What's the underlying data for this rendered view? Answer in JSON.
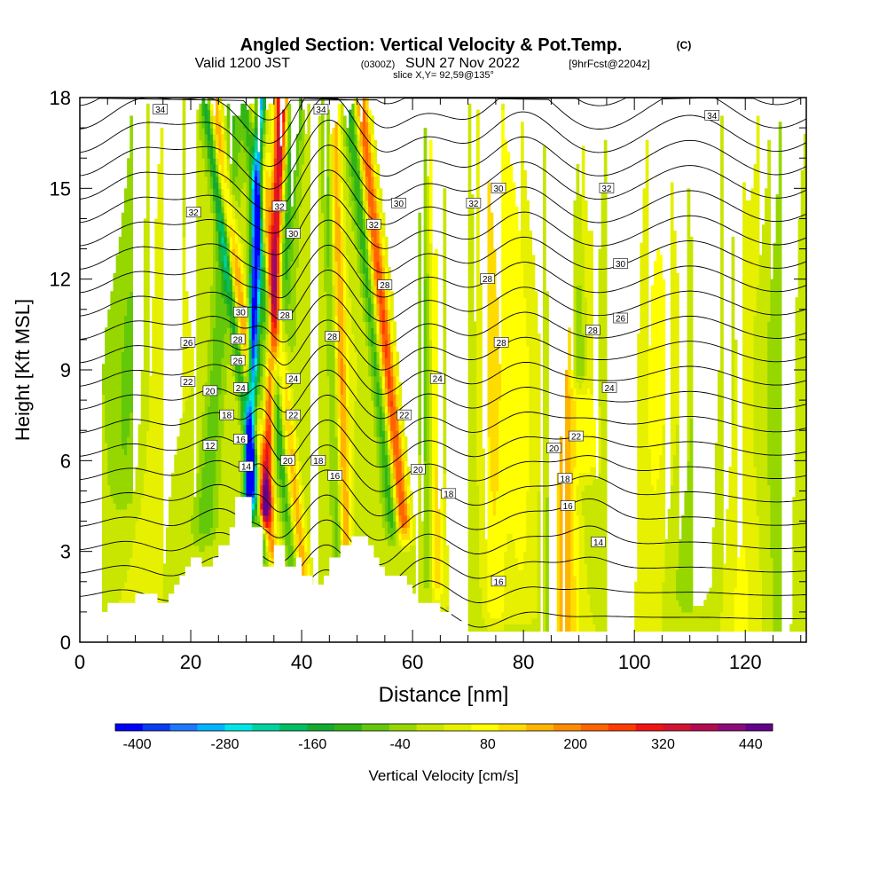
{
  "header": {
    "title_main": "Angled Section: Vertical Velocity & Pot.Temp.",
    "title_units": "(C)",
    "valid_prefix": "Valid 1200 JST",
    "valid_zulu": "(0300Z)",
    "valid_date": "SUN 27 Nov 2022",
    "forecast": "[9hrFcst@2204z]",
    "slice": "slice X,Y= 92,59@135°"
  },
  "chart_data": {
    "type": "heatmap",
    "xlabel": "Distance [nm]",
    "ylabel": "Height [Kft MSL]",
    "xlim": [
      0,
      131
    ],
    "ylim": [
      0,
      18
    ],
    "x_ticks": [
      "0",
      "20",
      "40",
      "60",
      "80",
      "100",
      "120"
    ],
    "x_tick_values": [
      0,
      20,
      40,
      60,
      80,
      100,
      120
    ],
    "y_ticks": [
      "0",
      "3",
      "6",
      "9",
      "12",
      "15",
      "18"
    ],
    "y_tick_values": [
      0,
      3,
      6,
      9,
      12,
      15,
      18
    ],
    "colorbar": {
      "label": "Vertical Velocity [cm/s]",
      "tick_labels": [
        "-400",
        "-280",
        "-160",
        "-40",
        "80",
        "200",
        "320",
        "440"
      ],
      "tick_values": [
        -400,
        -280,
        -160,
        -40,
        80,
        200,
        320,
        440
      ],
      "range": [
        -430,
        470
      ],
      "colors": [
        "#0000ff",
        "#0a3cf0",
        "#1e78ff",
        "#00b4ff",
        "#00e6e6",
        "#00d2a0",
        "#00be64",
        "#14aa32",
        "#32b414",
        "#64c80a",
        "#96d700",
        "#c8e600",
        "#e6f000",
        "#ffff00",
        "#ffdc00",
        "#ffb400",
        "#ff8c00",
        "#ff6400",
        "#ff3c00",
        "#f01414",
        "#d21432",
        "#b40a50",
        "#8c0a78",
        "#64008c"
      ]
    },
    "terrain_profile": [
      [
        0,
        1.0
      ],
      [
        5,
        1.0
      ],
      [
        5,
        1.3
      ],
      [
        10,
        1.3
      ],
      [
        10,
        1.6
      ],
      [
        14,
        1.6
      ],
      [
        14,
        1.3
      ],
      [
        16,
        1.3
      ],
      [
        16,
        1.6
      ],
      [
        17,
        1.6
      ],
      [
        17,
        1.9
      ],
      [
        18,
        1.9
      ],
      [
        18,
        2.2
      ],
      [
        19,
        2.2
      ],
      [
        19,
        2.5
      ],
      [
        20,
        2.5
      ],
      [
        20,
        2.8
      ],
      [
        22,
        2.8
      ],
      [
        22,
        2.5
      ],
      [
        24,
        2.5
      ],
      [
        24,
        2.8
      ],
      [
        25,
        2.8
      ],
      [
        25,
        3.2
      ],
      [
        27,
        3.2
      ],
      [
        27,
        3.8
      ],
      [
        28,
        3.8
      ],
      [
        28,
        4.8
      ],
      [
        31,
        4.8
      ],
      [
        31,
        3.8
      ],
      [
        33,
        3.8
      ],
      [
        33,
        2.5
      ],
      [
        35,
        2.5
      ],
      [
        35,
        3.2
      ],
      [
        37,
        3.2
      ],
      [
        37,
        2.5
      ],
      [
        39,
        2.5
      ],
      [
        39,
        2.8
      ],
      [
        40,
        2.8
      ],
      [
        40,
        2.2
      ],
      [
        42,
        2.2
      ],
      [
        42,
        1.9
      ],
      [
        44,
        1.9
      ],
      [
        44,
        2.2
      ],
      [
        45,
        2.2
      ],
      [
        45,
        2.8
      ],
      [
        47,
        2.8
      ],
      [
        47,
        3.2
      ],
      [
        49,
        3.2
      ],
      [
        49,
        3.5
      ],
      [
        52,
        3.5
      ],
      [
        52,
        3.2
      ],
      [
        53,
        3.2
      ],
      [
        53,
        2.8
      ],
      [
        54,
        2.8
      ],
      [
        54,
        2.5
      ],
      [
        55,
        2.5
      ],
      [
        55,
        2.2
      ],
      [
        59,
        2.2
      ],
      [
        59,
        1.9
      ],
      [
        60,
        1.9
      ],
      [
        60,
        1.6
      ],
      [
        61,
        1.6
      ],
      [
        61,
        1.3
      ],
      [
        65,
        1.3
      ],
      [
        65,
        1.0
      ],
      [
        67,
        1.0
      ],
      [
        67,
        0.7
      ],
      [
        70,
        0.7
      ],
      [
        70,
        0.35
      ],
      [
        131,
        0.35
      ]
    ],
    "velocity_bands": [
      {
        "x_base": 32.5,
        "slope": 0.22,
        "width": 1.1,
        "amp": 420,
        "z_start": 4.5
      },
      {
        "x_base": 29.8,
        "slope": 0.15,
        "width": 0.9,
        "amp": -420,
        "z_start": 4.5
      },
      {
        "x_base": 30.5,
        "slope": 0.45,
        "width": 2.0,
        "amp": -150,
        "z_start": 5.5
      },
      {
        "x_base": 36.8,
        "slope": -0.7,
        "width": 1.2,
        "amp": 180,
        "z_start": 3
      },
      {
        "x_base": 35.2,
        "slope": -0.7,
        "width": 0.9,
        "amp": -150,
        "z_start": 3
      },
      {
        "x_base": 41.5,
        "slope": -0.55,
        "width": 1.2,
        "amp": 150,
        "z_start": 2
      },
      {
        "x_base": 39.7,
        "slope": -0.55,
        "width": 1.0,
        "amp": -110,
        "z_start": 2
      },
      {
        "x_base": 60.5,
        "slope": -0.55,
        "width": 1.3,
        "amp": 250,
        "z_start": 4
      },
      {
        "x_base": 58.5,
        "slope": -0.55,
        "width": 1.2,
        "amp": -130,
        "z_start": 4
      },
      {
        "x_base": 48.5,
        "slope": -0.15,
        "width": 1.1,
        "amp": 160,
        "z_start": 1
      },
      {
        "x_base": 47.0,
        "slope": -0.15,
        "width": 0.9,
        "amp": -80,
        "z_start": 1
      },
      {
        "x_base": 64.5,
        "slope": -0.05,
        "width": 1.3,
        "amp": 110,
        "z_start": 2
      },
      {
        "x_base": 63.0,
        "slope": -0.05,
        "width": 1.0,
        "amp": -70,
        "z_start": 2
      },
      {
        "x_base": 75.0,
        "slope": -0.1,
        "width": 2.2,
        "amp": 90,
        "z_start": 1
      },
      {
        "x_base": 80.0,
        "slope": -0.15,
        "width": 3.0,
        "amp": 70,
        "z_start": 1
      },
      {
        "x_base": 87.5,
        "slope": 0.0,
        "width": 2.2,
        "amp": 160,
        "z_start": 0
      },
      {
        "x_base": 85.0,
        "slope": 0.0,
        "width": 1.2,
        "amp": -60,
        "z_start": 0
      },
      {
        "x_base": 91.0,
        "slope": -0.1,
        "width": 1.8,
        "amp": -120,
        "z_start": 9
      },
      {
        "x_base": 92.5,
        "slope": -0.1,
        "width": 2.2,
        "amp": 90,
        "z_start": 6
      },
      {
        "x_base": 21.0,
        "slope": 0.4,
        "width": 1.8,
        "amp": -90,
        "z_start": 4
      },
      {
        "x_base": 12.0,
        "slope": 0.3,
        "width": 3.0,
        "amp": 45,
        "z_start": 0
      },
      {
        "x_base": 7.0,
        "slope": 0.2,
        "width": 2.5,
        "amp": -45,
        "z_start": 5
      },
      {
        "x_base": 103.0,
        "slope": 0.1,
        "width": 3.0,
        "amp": 55,
        "z_start": 0
      },
      {
        "x_base": 111.0,
        "slope": 0.15,
        "width": 3.0,
        "amp": -45,
        "z_start": 2
      },
      {
        "x_base": 119.0,
        "slope": 0.1,
        "width": 3.0,
        "amp": 50,
        "z_start": 0
      },
      {
        "x_base": 126.0,
        "slope": 0.1,
        "width": 2.5,
        "amp": -40,
        "z_start": 0
      }
    ],
    "theta_levels": [
      12,
      13,
      14,
      15,
      16,
      17,
      18,
      19,
      20,
      21,
      22,
      23,
      24,
      25,
      26,
      27,
      28,
      29,
      30,
      31,
      32,
      33,
      34
    ],
    "contour_labels": [
      {
        "text": "34",
        "x": 14.5,
        "y": 17.6
      },
      {
        "text": "34",
        "x": 43.5,
        "y": 17.6
      },
      {
        "text": "34",
        "x": 114.0,
        "y": 17.4
      },
      {
        "text": "32",
        "x": 20.5,
        "y": 14.2
      },
      {
        "text": "32",
        "x": 36.0,
        "y": 14.4
      },
      {
        "text": "32",
        "x": 53.0,
        "y": 13.8
      },
      {
        "text": "32",
        "x": 71.0,
        "y": 14.5
      },
      {
        "text": "32",
        "x": 95.0,
        "y": 15.0
      },
      {
        "text": "30",
        "x": 38.5,
        "y": 13.5
      },
      {
        "text": "30",
        "x": 57.5,
        "y": 14.5
      },
      {
        "text": "30",
        "x": 75.5,
        "y": 15.0
      },
      {
        "text": "30",
        "x": 97.5,
        "y": 12.5
      },
      {
        "text": "30",
        "x": 29.0,
        "y": 10.9
      },
      {
        "text": "28",
        "x": 28.5,
        "y": 10.0
      },
      {
        "text": "28",
        "x": 37.0,
        "y": 10.8
      },
      {
        "text": "28",
        "x": 45.5,
        "y": 10.1
      },
      {
        "text": "28",
        "x": 55.0,
        "y": 11.8
      },
      {
        "text": "28",
        "x": 73.5,
        "y": 12.0
      },
      {
        "text": "28",
        "x": 76.0,
        "y": 9.9
      },
      {
        "text": "28",
        "x": 92.5,
        "y": 10.3
      },
      {
        "text": "26",
        "x": 19.5,
        "y": 9.9
      },
      {
        "text": "26",
        "x": 28.5,
        "y": 9.3
      },
      {
        "text": "26",
        "x": 97.5,
        "y": 10.7
      },
      {
        "text": "24",
        "x": 29.0,
        "y": 8.4
      },
      {
        "text": "24",
        "x": 38.5,
        "y": 8.7
      },
      {
        "text": "24",
        "x": 64.5,
        "y": 8.7
      },
      {
        "text": "24",
        "x": 95.5,
        "y": 8.4
      },
      {
        "text": "22",
        "x": 19.5,
        "y": 8.6
      },
      {
        "text": "22",
        "x": 38.5,
        "y": 7.5
      },
      {
        "text": "22",
        "x": 58.5,
        "y": 7.5
      },
      {
        "text": "22",
        "x": 89.5,
        "y": 6.8
      },
      {
        "text": "20",
        "x": 23.5,
        "y": 8.3
      },
      {
        "text": "20",
        "x": 37.5,
        "y": 6.0
      },
      {
        "text": "20",
        "x": 61.0,
        "y": 5.7
      },
      {
        "text": "20",
        "x": 85.5,
        "y": 6.4
      },
      {
        "text": "18",
        "x": 26.5,
        "y": 7.5
      },
      {
        "text": "18",
        "x": 43.0,
        "y": 6.0
      },
      {
        "text": "18",
        "x": 66.5,
        "y": 4.9
      },
      {
        "text": "18",
        "x": 87.5,
        "y": 5.4
      },
      {
        "text": "16",
        "x": 29.0,
        "y": 6.7
      },
      {
        "text": "16",
        "x": 46.0,
        "y": 5.5
      },
      {
        "text": "16",
        "x": 88.0,
        "y": 4.5
      },
      {
        "text": "16",
        "x": 75.5,
        "y": 2.0
      },
      {
        "text": "14",
        "x": 30.0,
        "y": 5.8
      },
      {
        "text": "14",
        "x": 93.5,
        "y": 3.3
      },
      {
        "text": "12",
        "x": 23.5,
        "y": 6.5
      }
    ]
  }
}
